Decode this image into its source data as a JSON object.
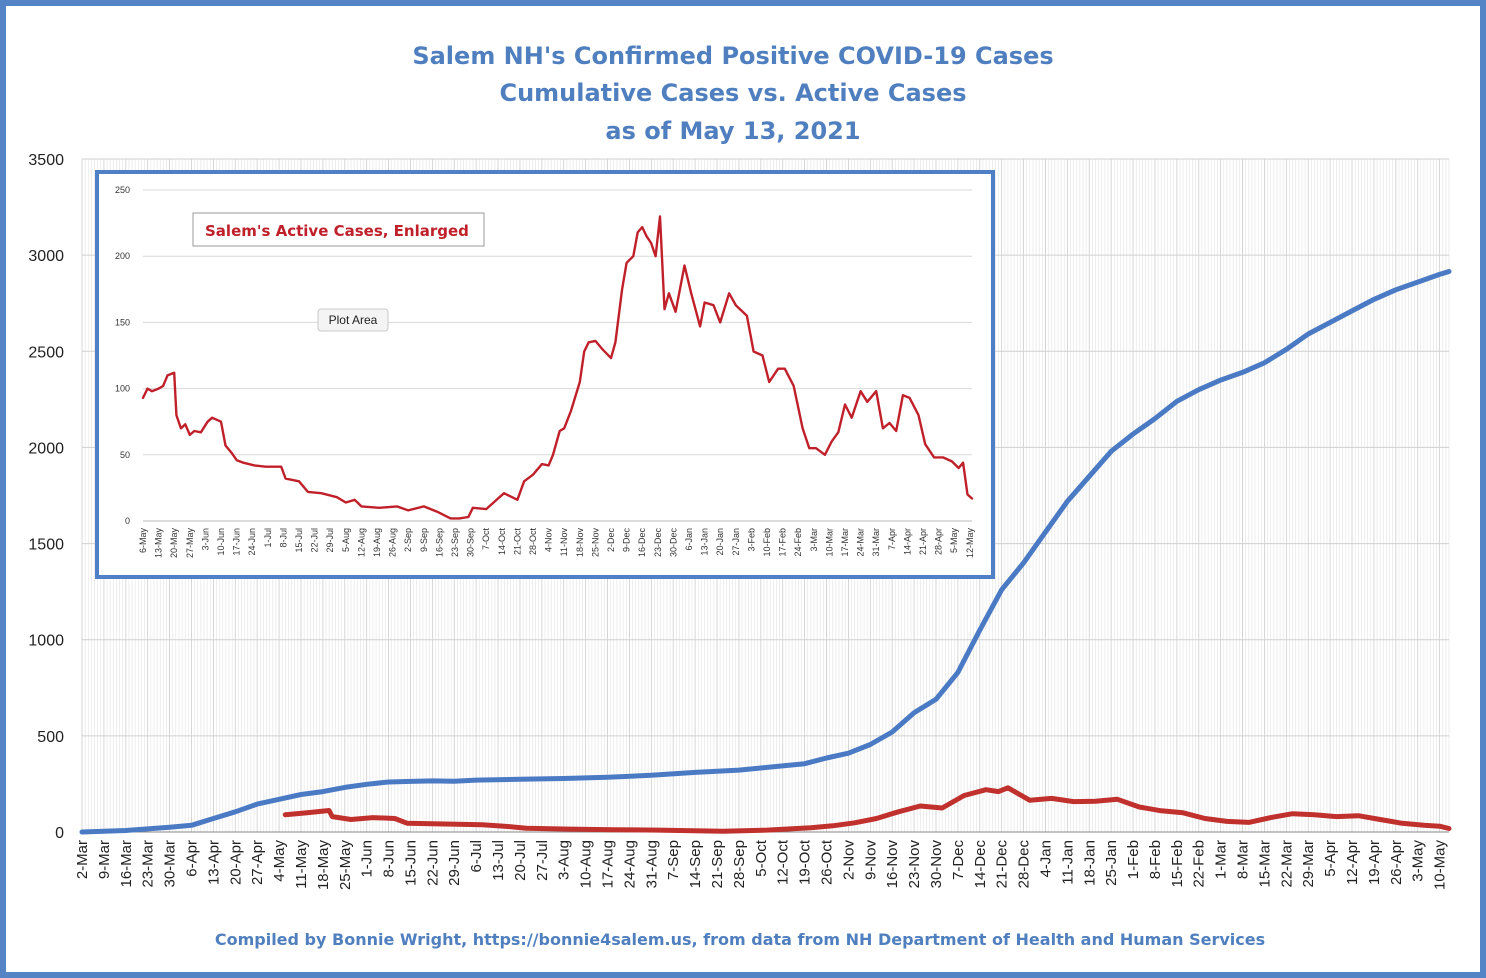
{
  "title": {
    "line1": "Salem NH's Confirmed Positive COVID-19 Cases",
    "line2": "Cumulative Cases vs. Active Cases",
    "line3": "as of May 13, 2021"
  },
  "footer": "Compiled by Bonnie Wright, https://bonnie4salem.us, from data from NH Department of Health and Human Services",
  "colors": {
    "frame": "#5584c6",
    "title": "#4f7fbf",
    "cumulative": "#4a7ac4",
    "active": "#c0302c",
    "inset_line": "#c0202a"
  },
  "chart_data": [
    {
      "type": "line",
      "x_range": [
        "2020-03-02",
        "2021-05-13"
      ],
      "ylim": [
        0,
        3500
      ],
      "y_ticks": [
        "0",
        "500",
        "1000",
        "1500",
        "2000",
        "2500",
        "3000",
        "3500"
      ],
      "x_tick_labels": [
        "2-Mar",
        "9-Mar",
        "16-Mar",
        "23-Mar",
        "30-Mar",
        "6-Apr",
        "13-Apr",
        "20-Apr",
        "27-Apr",
        "4-May",
        "11-May",
        "18-May",
        "25-May",
        "1-Jun",
        "8-Jun",
        "15-Jun",
        "22-Jun",
        "29-Jun",
        "6-Jul",
        "13-Jul",
        "20-Jul",
        "27-Jul",
        "3-Aug",
        "10-Aug",
        "17-Aug",
        "24-Aug",
        "31-Aug",
        "7-Sep",
        "14-Sep",
        "21-Sep",
        "28-Sep",
        "5-Oct",
        "12-Oct",
        "19-Oct",
        "26-Oct",
        "2-Nov",
        "9-Nov",
        "16-Nov",
        "23-Nov",
        "30-Nov",
        "7-Dec",
        "14-Dec",
        "21-Dec",
        "28-Dec",
        "4-Jan",
        "11-Jan",
        "18-Jan",
        "25-Jan",
        "1-Feb",
        "8-Feb",
        "15-Feb",
        "22-Feb",
        "1-Mar",
        "8-Mar",
        "15-Mar",
        "22-Mar",
        "29-Mar",
        "5-Apr",
        "12-Apr",
        "19-Apr",
        "26-Apr",
        "3-May",
        "10-May"
      ],
      "grid": true,
      "series": [
        {
          "key": "cumulative",
          "points": [
            [
              "2020-03-02",
              0
            ],
            [
              "2020-03-16",
              8
            ],
            [
              "2020-03-30",
              25
            ],
            [
              "2020-04-06",
              35
            ],
            [
              "2020-04-13",
              70
            ],
            [
              "2020-04-20",
              105
            ],
            [
              "2020-04-27",
              145
            ],
            [
              "2020-05-04",
              170
            ],
            [
              "2020-05-11",
              195
            ],
            [
              "2020-05-18",
              210
            ],
            [
              "2020-05-25",
              232
            ],
            [
              "2020-06-01",
              248
            ],
            [
              "2020-06-08",
              260
            ],
            [
              "2020-06-15",
              263
            ],
            [
              "2020-06-22",
              266
            ],
            [
              "2020-06-29",
              264
            ],
            [
              "2020-07-06",
              270
            ],
            [
              "2020-07-20",
              274
            ],
            [
              "2020-08-03",
              278
            ],
            [
              "2020-08-17",
              285
            ],
            [
              "2020-08-31",
              295
            ],
            [
              "2020-09-14",
              310
            ],
            [
              "2020-09-28",
              322
            ],
            [
              "2020-10-05",
              333
            ],
            [
              "2020-10-19",
              355
            ],
            [
              "2020-10-26",
              385
            ],
            [
              "2020-11-02",
              410
            ],
            [
              "2020-11-09",
              455
            ],
            [
              "2020-11-16",
              520
            ],
            [
              "2020-11-23",
              620
            ],
            [
              "2020-11-30",
              690
            ],
            [
              "2020-12-07",
              830
            ],
            [
              "2020-12-14",
              1050
            ],
            [
              "2020-12-21",
              1260
            ],
            [
              "2020-12-28",
              1400
            ],
            [
              "2021-01-04",
              1560
            ],
            [
              "2021-01-11",
              1720
            ],
            [
              "2021-01-18",
              1850
            ],
            [
              "2021-01-25",
              1980
            ],
            [
              "2021-02-01",
              2070
            ],
            [
              "2021-02-08",
              2150
            ],
            [
              "2021-02-15",
              2240
            ],
            [
              "2021-02-22",
              2300
            ],
            [
              "2021-03-01",
              2350
            ],
            [
              "2021-03-08",
              2390
            ],
            [
              "2021-03-15",
              2440
            ],
            [
              "2021-03-22",
              2510
            ],
            [
              "2021-03-29",
              2590
            ],
            [
              "2021-04-05",
              2650
            ],
            [
              "2021-04-12",
              2710
            ],
            [
              "2021-04-19",
              2770
            ],
            [
              "2021-04-26",
              2820
            ],
            [
              "2021-05-03",
              2860
            ],
            [
              "2021-05-10",
              2900
            ],
            [
              "2021-05-13",
              2915
            ]
          ]
        },
        {
          "key": "active",
          "points": [
            [
              "2020-05-06",
              90
            ],
            [
              "2020-05-13",
              100
            ],
            [
              "2020-05-20",
              112
            ],
            [
              "2020-05-21",
              80
            ],
            [
              "2020-05-27",
              65
            ],
            [
              "2020-06-03",
              75
            ],
            [
              "2020-06-10",
              70
            ],
            [
              "2020-06-14",
              45
            ],
            [
              "2020-06-24",
              42
            ],
            [
              "2020-07-08",
              38
            ],
            [
              "2020-07-15",
              30
            ],
            [
              "2020-07-22",
              20
            ],
            [
              "2020-08-05",
              15
            ],
            [
              "2020-08-19",
              12
            ],
            [
              "2020-09-02",
              10
            ],
            [
              "2020-09-23",
              4
            ],
            [
              "2020-10-07",
              10
            ],
            [
              "2020-10-21",
              22
            ],
            [
              "2020-10-28",
              32
            ],
            [
              "2020-11-04",
              48
            ],
            [
              "2020-11-11",
              70
            ],
            [
              "2020-11-18",
              105
            ],
            [
              "2020-11-25",
              135
            ],
            [
              "2020-12-02",
              125
            ],
            [
              "2020-12-09",
              190
            ],
            [
              "2020-12-16",
              220
            ],
            [
              "2020-12-20",
              210
            ],
            [
              "2020-12-23",
              230
            ],
            [
              "2020-12-30",
              165
            ],
            [
              "2021-01-06",
              175
            ],
            [
              "2021-01-13",
              158
            ],
            [
              "2021-01-20",
              160
            ],
            [
              "2021-01-27",
              170
            ],
            [
              "2021-02-03",
              130
            ],
            [
              "2021-02-10",
              110
            ],
            [
              "2021-02-17",
              100
            ],
            [
              "2021-02-24",
              70
            ],
            [
              "2021-03-03",
              55
            ],
            [
              "2021-03-10",
              50
            ],
            [
              "2021-03-17",
              75
            ],
            [
              "2021-03-24",
              95
            ],
            [
              "2021-03-31",
              90
            ],
            [
              "2021-04-07",
              80
            ],
            [
              "2021-04-14",
              85
            ],
            [
              "2021-04-21",
              65
            ],
            [
              "2021-04-28",
              45
            ],
            [
              "2021-05-05",
              35
            ],
            [
              "2021-05-10",
              30
            ],
            [
              "2021-05-13",
              18
            ]
          ]
        }
      ]
    },
    {
      "type": "line",
      "title": "Salem's Active Cases, Enlarged",
      "x_range": [
        "2020-05-06",
        "2021-05-13"
      ],
      "ylim": [
        0,
        250
      ],
      "y_ticks": [
        "0",
        "50",
        "100",
        "150",
        "200",
        "250"
      ],
      "x_tick_labels": [
        "6-May",
        "13-May",
        "20-May",
        "27-May",
        "3-Jun",
        "10-Jun",
        "17-Jun",
        "24-Jun",
        "1-Jul",
        "8-Jul",
        "15-Jul",
        "22-Jul",
        "29-Jul",
        "5-Aug",
        "12-Aug",
        "19-Aug",
        "26-Aug",
        "2-Sep",
        "9-Sep",
        "16-Sep",
        "23-Sep",
        "30-Sep",
        "7-Oct",
        "14-Oct",
        "21-Oct",
        "28-Oct",
        "4-Nov",
        "11-Nov",
        "18-Nov",
        "25-Nov",
        "2-Dec",
        "9-Dec",
        "16-Dec",
        "23-Dec",
        "30-Dec",
        "6-Jan",
        "13-Jan",
        "20-Jan",
        "27-Jan",
        "3-Feb",
        "10-Feb",
        "17-Feb",
        "24-Feb",
        "3-Mar",
        "10-Mar",
        "17-Mar",
        "24-Mar",
        "31-Mar",
        "7-Apr",
        "14-Apr",
        "21-Apr",
        "28-Apr",
        "5-May",
        "12-May"
      ],
      "grid": true,
      "tooltip": "Plot Area",
      "series": [
        {
          "key": "active_enlarged",
          "points": [
            [
              "2020-05-06",
              93
            ],
            [
              "2020-05-08",
              100
            ],
            [
              "2020-05-10",
              98
            ],
            [
              "2020-05-13",
              100
            ],
            [
              "2020-05-15",
              102
            ],
            [
              "2020-05-17",
              110
            ],
            [
              "2020-05-20",
              112
            ],
            [
              "2020-05-21",
              80
            ],
            [
              "2020-05-23",
              70
            ],
            [
              "2020-05-25",
              73
            ],
            [
              "2020-05-27",
              65
            ],
            [
              "2020-05-29",
              68
            ],
            [
              "2020-06-01",
              67
            ],
            [
              "2020-06-04",
              75
            ],
            [
              "2020-06-06",
              78
            ],
            [
              "2020-06-10",
              75
            ],
            [
              "2020-06-12",
              57
            ],
            [
              "2020-06-15",
              51
            ],
            [
              "2020-06-17",
              46
            ],
            [
              "2020-06-20",
              44
            ],
            [
              "2020-06-25",
              42
            ],
            [
              "2020-06-30",
              41
            ],
            [
              "2020-07-05",
              41
            ],
            [
              "2020-07-07",
              41
            ],
            [
              "2020-07-09",
              32
            ],
            [
              "2020-07-15",
              30
            ],
            [
              "2020-07-19",
              22
            ],
            [
              "2020-07-25",
              21
            ],
            [
              "2020-08-01",
              18
            ],
            [
              "2020-08-05",
              14
            ],
            [
              "2020-08-09",
              16
            ],
            [
              "2020-08-12",
              11
            ],
            [
              "2020-08-20",
              10
            ],
            [
              "2020-08-28",
              11
            ],
            [
              "2020-09-02",
              8
            ],
            [
              "2020-09-09",
              11
            ],
            [
              "2020-09-15",
              7
            ],
            [
              "2020-09-21",
              2
            ],
            [
              "2020-09-25",
              2
            ],
            [
              "2020-09-29",
              3
            ],
            [
              "2020-10-01",
              10
            ],
            [
              "2020-10-07",
              9
            ],
            [
              "2020-10-11",
              15
            ],
            [
              "2020-10-15",
              21
            ],
            [
              "2020-10-21",
              16
            ],
            [
              "2020-10-24",
              30
            ],
            [
              "2020-10-28",
              35
            ],
            [
              "2020-11-01",
              43
            ],
            [
              "2020-11-04",
              42
            ],
            [
              "2020-11-06",
              50
            ],
            [
              "2020-11-09",
              68
            ],
            [
              "2020-11-11",
              70
            ],
            [
              "2020-11-14",
              83
            ],
            [
              "2020-11-18",
              105
            ],
            [
              "2020-11-20",
              128
            ],
            [
              "2020-11-22",
              135
            ],
            [
              "2020-11-25",
              136
            ],
            [
              "2020-11-28",
              130
            ],
            [
              "2020-12-02",
              123
            ],
            [
              "2020-12-04",
              135
            ],
            [
              "2020-12-07",
              175
            ],
            [
              "2020-12-09",
              195
            ],
            [
              "2020-12-12",
              200
            ],
            [
              "2020-12-14",
              218
            ],
            [
              "2020-12-16",
              222
            ],
            [
              "2020-12-18",
              215
            ],
            [
              "2020-12-20",
              210
            ],
            [
              "2020-12-22",
              200
            ],
            [
              "2020-12-24",
              230
            ],
            [
              "2020-12-26",
              160
            ],
            [
              "2020-12-28",
              172
            ],
            [
              "2020-12-31",
              158
            ],
            [
              "2021-01-04",
              193
            ],
            [
              "2021-01-07",
              172
            ],
            [
              "2021-01-11",
              147
            ],
            [
              "2021-01-13",
              165
            ],
            [
              "2021-01-17",
              163
            ],
            [
              "2021-01-20",
              150
            ],
            [
              "2021-01-24",
              172
            ],
            [
              "2021-01-27",
              163
            ],
            [
              "2021-02-01",
              155
            ],
            [
              "2021-02-04",
              128
            ],
            [
              "2021-02-08",
              125
            ],
            [
              "2021-02-11",
              105
            ],
            [
              "2021-02-15",
              115
            ],
            [
              "2021-02-18",
              115
            ],
            [
              "2021-02-22",
              102
            ],
            [
              "2021-02-26",
              70
            ],
            [
              "2021-03-01",
              55
            ],
            [
              "2021-03-04",
              55
            ],
            [
              "2021-03-08",
              50
            ],
            [
              "2021-03-11",
              60
            ],
            [
              "2021-03-14",
              67
            ],
            [
              "2021-03-17",
              88
            ],
            [
              "2021-03-20",
              78
            ],
            [
              "2021-03-24",
              98
            ],
            [
              "2021-03-27",
              90
            ],
            [
              "2021-03-31",
              98
            ],
            [
              "2021-04-03",
              70
            ],
            [
              "2021-04-06",
              74
            ],
            [
              "2021-04-09",
              68
            ],
            [
              "2021-04-12",
              95
            ],
            [
              "2021-04-15",
              93
            ],
            [
              "2021-04-19",
              80
            ],
            [
              "2021-04-22",
              58
            ],
            [
              "2021-04-26",
              48
            ],
            [
              "2021-04-30",
              48
            ],
            [
              "2021-05-04",
              45
            ],
            [
              "2021-05-07",
              40
            ],
            [
              "2021-05-09",
              44
            ],
            [
              "2021-05-11",
              20
            ],
            [
              "2021-05-13",
              17
            ]
          ]
        }
      ]
    }
  ]
}
